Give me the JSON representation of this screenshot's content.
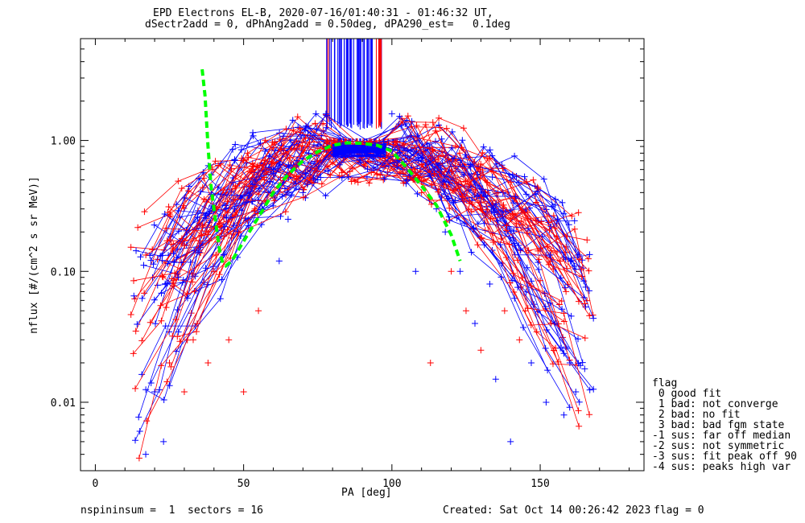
{
  "chart_data": {
    "type": "scatter",
    "title": "EPD Electrons EL-B, 2020-07-16/01:40:31 - 01:46:32 UT,",
    "subtitle": "dSectr2add = 0, dPhAng2add = 0.50deg, dPA290_est=   0.1deg",
    "xlabel": "PA [deg]",
    "ylabel": "nflux [#/(cm^2 s sr MeV)]",
    "xlim": [
      -5,
      185
    ],
    "ylim": [
      0.003,
      6
    ],
    "yscale": "log",
    "xticks": [
      {
        "value": 0,
        "label": "0"
      },
      {
        "value": 50,
        "label": "50"
      },
      {
        "value": 100,
        "label": "100"
      },
      {
        "value": 150,
        "label": "150"
      }
    ],
    "yticks": [
      {
        "value": 0.01,
        "label": "0.01"
      },
      {
        "value": 0.1,
        "label": "0.10"
      },
      {
        "value": 1,
        "label": "1.00"
      }
    ],
    "series": [
      {
        "color": "#ff0000",
        "description": "pitch-angle spectra (red)"
      },
      {
        "color": "#0000ff",
        "description": "pitch-angle spectra (blue)"
      },
      {
        "color": "#00ff00",
        "style": "dashed",
        "description": "fit",
        "x": [
          36,
          37,
          38,
          39,
          40,
          41,
          42,
          43,
          44,
          46,
          50,
          55,
          60,
          65,
          70,
          75,
          80,
          85,
          90,
          95,
          100,
          105,
          110,
          115,
          120,
          123
        ],
        "y": [
          3.5,
          2.2,
          0.9,
          0.45,
          0.3,
          0.2,
          0.14,
          0.115,
          0.11,
          0.12,
          0.17,
          0.26,
          0.4,
          0.55,
          0.7,
          0.82,
          0.92,
          0.96,
          0.95,
          0.92,
          0.83,
          0.62,
          0.45,
          0.32,
          0.19,
          0.12
        ]
      }
    ],
    "envelope_points": [
      [
        13,
        0.065
      ],
      [
        15,
        0.006
      ],
      [
        17,
        0.004
      ],
      [
        20,
        0.012
      ],
      [
        23,
        0.005
      ],
      [
        25,
        0.02
      ],
      [
        28,
        0.09
      ],
      [
        30,
        0.012
      ],
      [
        33,
        0.03
      ],
      [
        35,
        0.14
      ],
      [
        38,
        0.02
      ],
      [
        40,
        0.1
      ],
      [
        42,
        0.22
      ],
      [
        45,
        0.03
      ],
      [
        47,
        0.3
      ],
      [
        50,
        0.012
      ],
      [
        52,
        0.45
      ],
      [
        55,
        0.05
      ],
      [
        57,
        0.5
      ],
      [
        60,
        0.6
      ],
      [
        62,
        0.12
      ],
      [
        65,
        0.25
      ],
      [
        68,
        0.7
      ],
      [
        70,
        0.4
      ],
      [
        72,
        0.8
      ],
      [
        75,
        0.5
      ],
      [
        78,
        0.95
      ],
      [
        80,
        0.9
      ],
      [
        85,
        0.85
      ],
      [
        90,
        0.82
      ],
      [
        95,
        0.8
      ],
      [
        100,
        1.6
      ],
      [
        102,
        0.7
      ],
      [
        105,
        0.5
      ],
      [
        108,
        0.1
      ],
      [
        110,
        0.4
      ],
      [
        113,
        0.02
      ],
      [
        115,
        0.3
      ],
      [
        118,
        0.2
      ],
      [
        120,
        0.1
      ],
      [
        123,
        0.1
      ],
      [
        125,
        0.05
      ],
      [
        128,
        0.04
      ],
      [
        130,
        0.025
      ],
      [
        133,
        0.08
      ],
      [
        135,
        0.015
      ],
      [
        138,
        0.05
      ],
      [
        140,
        0.005
      ],
      [
        143,
        0.03
      ],
      [
        145,
        0.05
      ],
      [
        147,
        0.02
      ],
      [
        150,
        0.085
      ],
      [
        152,
        0.01
      ],
      [
        155,
        0.04
      ],
      [
        158,
        0.008
      ],
      [
        160,
        0.02
      ],
      [
        162,
        0.012
      ],
      [
        165,
        0.018
      ]
    ],
    "saturated_x_range": [
      78,
      98
    ],
    "legend": {
      "title": "flag",
      "entries": [
        " 0 good fit",
        " 1 bad: not converge",
        " 2 bad: no fit",
        " 3 bad: bad fgm state",
        "-1 sus: far off median",
        "-2 sus: not symmetric",
        "-3 sus: fit peak off 90",
        "-4 sus: peaks high var"
      ]
    }
  },
  "footer": {
    "left": "nspininsum =  1  sectors = 16",
    "created": "Created: Sat Oct 14 00:26:42 2023",
    "flag": "flag = 0"
  }
}
